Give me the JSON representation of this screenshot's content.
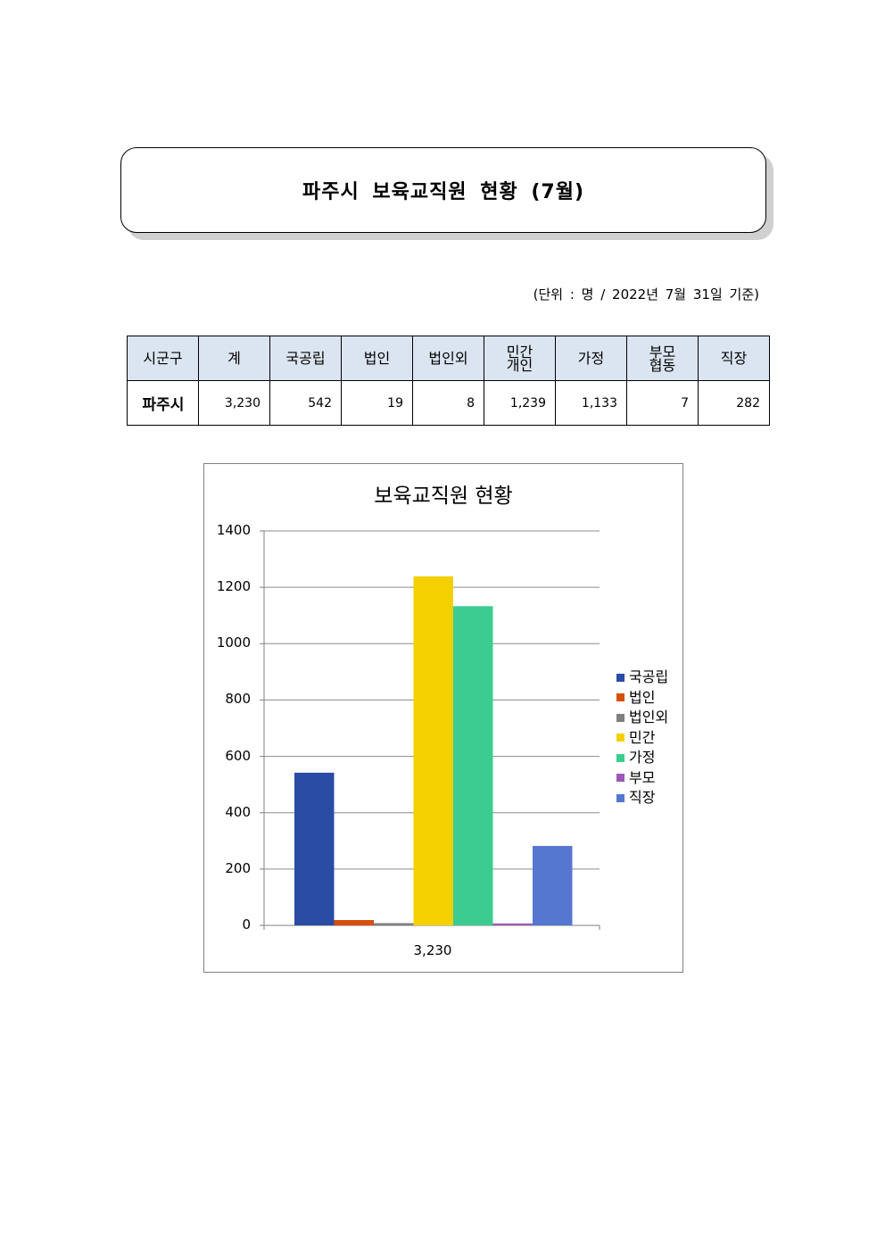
{
  "title": "파주시 보육교직원 현황 (7월)",
  "unit_note": "(단위 : 명 / 2022년 7월 31일 기준)",
  "table": {
    "headers": [
      "시군구",
      "계",
      "국공립",
      "법인",
      "법인외",
      "민간\n개인",
      "가정",
      "부모\n협동",
      "직장"
    ],
    "row": [
      "파주시",
      "3,230",
      "542",
      "19",
      "8",
      "1,239",
      "1,133",
      "7",
      "282"
    ]
  },
  "chart_data": {
    "type": "bar",
    "title": "보육교직원 현황",
    "categories": [
      "3,230"
    ],
    "series": [
      {
        "name": "국공립",
        "values": [
          542
        ],
        "color": "#2a4ca4"
      },
      {
        "name": "법인",
        "values": [
          19
        ],
        "color": "#d4500e"
      },
      {
        "name": "법인외",
        "values": [
          8
        ],
        "color": "#7f7f7f"
      },
      {
        "name": "민간",
        "values": [
          1239
        ],
        "color": "#f5d000"
      },
      {
        "name": "가정",
        "values": [
          1133
        ],
        "color": "#3ccc91"
      },
      {
        "name": "부모",
        "values": [
          7
        ],
        "color": "#9b59b6"
      },
      {
        "name": "직장",
        "values": [
          282
        ],
        "color": "#5577d0"
      }
    ],
    "ylim": [
      0,
      1400
    ],
    "yticks": [
      0,
      200,
      400,
      600,
      800,
      1000,
      1200,
      1400
    ],
    "grid": true,
    "legend": "right"
  }
}
